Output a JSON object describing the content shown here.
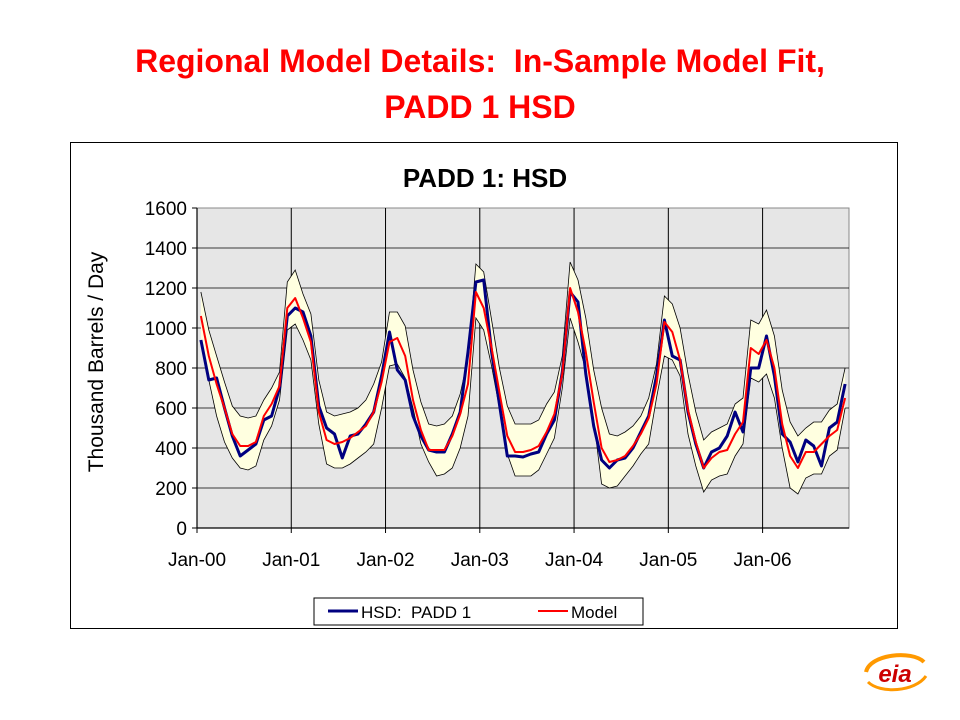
{
  "slide": {
    "title_line1": "Regional Model Details:  In-Sample Model Fit,",
    "title_line2": "PADD 1 HSD"
  },
  "logo": {
    "text": "eia"
  },
  "colors": {
    "title": "#ff0000",
    "actual": "#000080",
    "model": "#ff0000",
    "band_fill": "#ffffe0",
    "plot_bg": "#e6e6e6"
  },
  "chart_data": {
    "type": "line",
    "title": "PADD 1:  HSD",
    "xlabel": "",
    "ylabel": "Thousand Barrels / Day",
    "ylim": [
      0,
      1600
    ],
    "yticks": [
      0,
      200,
      400,
      600,
      800,
      1000,
      1200,
      1400,
      1600
    ],
    "xticks": [
      "Jan-00",
      "Jan-01",
      "Jan-02",
      "Jan-03",
      "Jan-04",
      "Jan-05",
      "Jan-06"
    ],
    "x_start": "Jan-00",
    "x_end": "Dec-06",
    "grid": "horizontal",
    "legend_position": "bottom",
    "series": [
      {
        "name": "HSD:  PADD 1",
        "color": "#000080",
        "values": [
          940,
          740,
          750,
          600,
          460,
          360,
          390,
          420,
          540,
          560,
          700,
          1060,
          1100,
          1080,
          960,
          610,
          500,
          470,
          350,
          460,
          470,
          520,
          580,
          760,
          980,
          790,
          740,
          560,
          460,
          390,
          380,
          380,
          470,
          580,
          880,
          1230,
          1240,
          880,
          620,
          360,
          360,
          355,
          370,
          380,
          470,
          540,
          780,
          1180,
          1130,
          770,
          510,
          340,
          300,
          340,
          350,
          400,
          480,
          560,
          760,
          1040,
          860,
          840,
          580,
          420,
          300,
          380,
          400,
          460,
          580,
          480,
          800,
          800,
          960,
          760,
          470,
          430,
          330,
          440,
          410,
          310,
          500,
          530,
          720
        ],
        "upper": [
          1180,
          990,
          860,
          730,
          610,
          560,
          550,
          560,
          640,
          700,
          780,
          1230,
          1290,
          1170,
          1070,
          740,
          580,
          560,
          570,
          580,
          600,
          640,
          720,
          830,
          1080,
          1080,
          1010,
          790,
          630,
          520,
          510,
          520,
          560,
          670,
          850,
          1320,
          1280,
          1040,
          800,
          610,
          520,
          520,
          520,
          540,
          620,
          680,
          860,
          1330,
          1240,
          1050,
          790,
          600,
          470,
          460,
          480,
          510,
          560,
          650,
          820,
          1160,
          1120,
          1000,
          770,
          580,
          440,
          480,
          500,
          520,
          620,
          650,
          1040,
          1020,
          1090,
          960,
          690,
          530,
          460,
          500,
          530,
          530,
          590,
          620,
          800
        ],
        "lower": [
          940,
          740,
          560,
          430,
          350,
          300,
          290,
          310,
          440,
          510,
          640,
          990,
          1020,
          940,
          840,
          520,
          320,
          300,
          300,
          320,
          350,
          380,
          420,
          600,
          810,
          820,
          750,
          600,
          420,
          330,
          260,
          270,
          300,
          400,
          560,
          1050,
          990,
          810,
          600,
          370,
          260,
          260,
          260,
          290,
          370,
          450,
          700,
          1050,
          930,
          790,
          540,
          220,
          200,
          210,
          260,
          310,
          370,
          420,
          650,
          860,
          840,
          760,
          470,
          310,
          180,
          240,
          260,
          270,
          360,
          420,
          750,
          730,
          770,
          650,
          400,
          200,
          170,
          250,
          270,
          270,
          360,
          390,
          600
        ]
      },
      {
        "name": "Model",
        "color": "#ff0000",
        "values": [
          1060,
          860,
          720,
          600,
          470,
          410,
          410,
          430,
          560,
          620,
          710,
          1100,
          1150,
          1050,
          930,
          580,
          440,
          420,
          430,
          450,
          480,
          510,
          580,
          730,
          930,
          950,
          860,
          640,
          490,
          390,
          390,
          390,
          460,
          570,
          720,
          1180,
          1100,
          900,
          680,
          460,
          380,
          380,
          390,
          410,
          480,
          570,
          770,
          1200,
          1080,
          880,
          630,
          400,
          330,
          340,
          360,
          410,
          470,
          550,
          720,
          1030,
          980,
          840,
          590,
          430,
          300,
          350,
          380,
          390,
          470,
          530,
          900,
          870,
          940,
          800,
          520,
          360,
          300,
          380,
          380,
          420,
          460,
          490,
          650
        ]
      }
    ]
  }
}
